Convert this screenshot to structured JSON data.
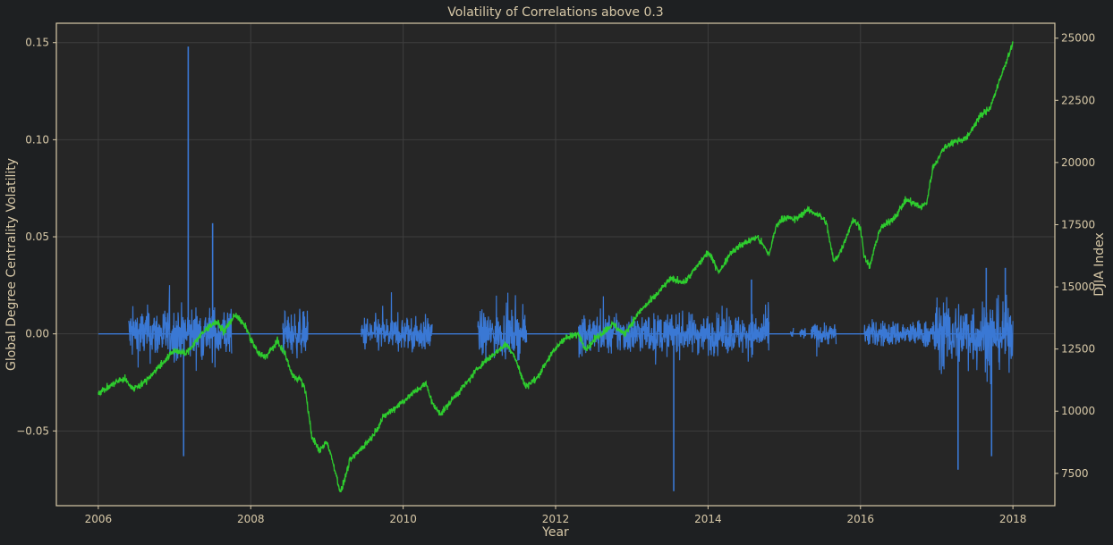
{
  "chart_data": {
    "type": "line",
    "title": "Volatility of Correlations above 0.3",
    "xlabel": "Year",
    "ylabel_left": "Global Degree Centrality Volatility",
    "ylabel_right": "DJIA Index",
    "xlim": [
      2005.45,
      2018.55
    ],
    "ylim_left": [
      -0.0885,
      0.16
    ],
    "ylim_right": [
      6200,
      25600
    ],
    "x_ticks": [
      2006,
      2008,
      2010,
      2012,
      2014,
      2016,
      2018
    ],
    "x_tick_labels": [
      "2006",
      "2008",
      "2010",
      "2012",
      "2014",
      "2016",
      "2018"
    ],
    "y_left_ticks": [
      -0.05,
      0.0,
      0.05,
      0.1,
      0.15
    ],
    "y_left_tick_labels": [
      "−0.05",
      "0.00",
      "0.05",
      "0.10",
      "0.15"
    ],
    "y_right_ticks": [
      7500,
      10000,
      12500,
      15000,
      17500,
      20000,
      22500,
      25000
    ],
    "y_right_tick_labels": [
      "7500",
      "10000",
      "12500",
      "15000",
      "17500",
      "20000",
      "22500",
      "25000"
    ],
    "grid": true,
    "colors": {
      "background": "#1e2022",
      "plot_bg": "#262626",
      "axis_frame": "#d8c9a8",
      "grid": "#3e3e3e",
      "text": "#d8c9a8",
      "volatility_line": "#3a78d4",
      "djia_line": "#2ecc2e"
    },
    "series": [
      {
        "axis": "left",
        "active_bursts": [
          [
            2006.4,
            2007.75,
            0.012
          ],
          [
            2008.42,
            2008.75,
            0.01
          ],
          [
            2009.45,
            2010.38,
            0.008
          ],
          [
            2010.98,
            2011.62,
            0.01
          ],
          [
            2012.3,
            2014.8,
            0.009
          ],
          [
            2015.08,
            2015.12,
            0.002
          ],
          [
            2015.2,
            2015.28,
            0.003
          ],
          [
            2015.35,
            2015.68,
            0.005
          ],
          [
            2016.05,
            2016.95,
            0.006
          ],
          [
            2016.95,
            2018.0,
            0.015
          ]
        ],
        "spikes": [
          [
            2007.18,
            0.148
          ],
          [
            2007.12,
            -0.063
          ],
          [
            2007.5,
            0.057
          ],
          [
            2013.55,
            -0.081
          ],
          [
            2014.57,
            0.028
          ],
          [
            2017.28,
            -0.07
          ],
          [
            2017.72,
            -0.063
          ],
          [
            2017.65,
            0.034
          ],
          [
            2017.9,
            0.034
          ]
        ]
      },
      {
        "axis": "right",
        "values": [
          [
            2006.0,
            10750
          ],
          [
            2006.1,
            10900
          ],
          [
            2006.25,
            11200
          ],
          [
            2006.35,
            11300
          ],
          [
            2006.45,
            10900
          ],
          [
            2006.6,
            11150
          ],
          [
            2006.8,
            11800
          ],
          [
            2007.0,
            12450
          ],
          [
            2007.15,
            12300
          ],
          [
            2007.3,
            12900
          ],
          [
            2007.45,
            13400
          ],
          [
            2007.55,
            13600
          ],
          [
            2007.65,
            13200
          ],
          [
            2007.8,
            13900
          ],
          [
            2007.95,
            13300
          ],
          [
            2008.0,
            12900
          ],
          [
            2008.1,
            12300
          ],
          [
            2008.2,
            12200
          ],
          [
            2008.35,
            12800
          ],
          [
            2008.45,
            12300
          ],
          [
            2008.55,
            11400
          ],
          [
            2008.65,
            11300
          ],
          [
            2008.72,
            10800
          ],
          [
            2008.8,
            9000
          ],
          [
            2008.9,
            8400
          ],
          [
            2009.0,
            8800
          ],
          [
            2009.1,
            7700
          ],
          [
            2009.18,
            6700
          ],
          [
            2009.3,
            8000
          ],
          [
            2009.45,
            8500
          ],
          [
            2009.6,
            9000
          ],
          [
            2009.75,
            9800
          ],
          [
            2010.0,
            10400
          ],
          [
            2010.2,
            10900
          ],
          [
            2010.3,
            11100
          ],
          [
            2010.4,
            10200
          ],
          [
            2010.5,
            9900
          ],
          [
            2010.65,
            10500
          ],
          [
            2010.85,
            11200
          ],
          [
            2011.0,
            11800
          ],
          [
            2011.15,
            12200
          ],
          [
            2011.35,
            12700
          ],
          [
            2011.45,
            12300
          ],
          [
            2011.6,
            11000
          ],
          [
            2011.75,
            11300
          ],
          [
            2011.9,
            12100
          ],
          [
            2012.1,
            12900
          ],
          [
            2012.3,
            13100
          ],
          [
            2012.4,
            12500
          ],
          [
            2012.55,
            13000
          ],
          [
            2012.75,
            13500
          ],
          [
            2012.9,
            13100
          ],
          [
            2013.1,
            14000
          ],
          [
            2013.3,
            14600
          ],
          [
            2013.5,
            15300
          ],
          [
            2013.7,
            15200
          ],
          [
            2013.9,
            16000
          ],
          [
            2014.0,
            16400
          ],
          [
            2014.15,
            15600
          ],
          [
            2014.3,
            16400
          ],
          [
            2014.5,
            16800
          ],
          [
            2014.65,
            17000
          ],
          [
            2014.8,
            16300
          ],
          [
            2014.9,
            17500
          ],
          [
            2015.0,
            17800
          ],
          [
            2015.15,
            17700
          ],
          [
            2015.3,
            18100
          ],
          [
            2015.45,
            17900
          ],
          [
            2015.55,
            17600
          ],
          [
            2015.65,
            16000
          ],
          [
            2015.75,
            16500
          ],
          [
            2015.9,
            17700
          ],
          [
            2016.0,
            17400
          ],
          [
            2016.05,
            16200
          ],
          [
            2016.12,
            15800
          ],
          [
            2016.25,
            17300
          ],
          [
            2016.45,
            17800
          ],
          [
            2016.6,
            18500
          ],
          [
            2016.8,
            18200
          ],
          [
            2016.87,
            18400
          ],
          [
            2016.95,
            19800
          ],
          [
            2017.1,
            20600
          ],
          [
            2017.2,
            20800
          ],
          [
            2017.4,
            21000
          ],
          [
            2017.55,
            21800
          ],
          [
            2017.7,
            22200
          ],
          [
            2017.85,
            23500
          ],
          [
            2017.95,
            24400
          ],
          [
            2018.0,
            24800
          ]
        ]
      }
    ]
  }
}
